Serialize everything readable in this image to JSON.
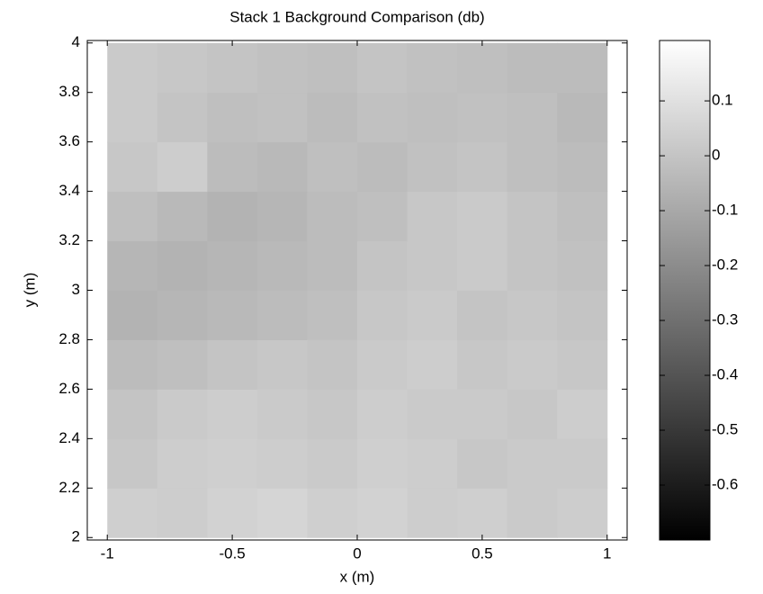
{
  "chart_data": {
    "type": "heatmap",
    "title": "Stack 1 Background Comparison (db)",
    "x_label": "x (m)",
    "y_label": "y (m)",
    "x": [
      -0.9,
      -0.7,
      -0.5,
      -0.3,
      -0.1,
      0.1,
      0.3,
      0.5,
      0.7,
      0.9
    ],
    "y": [
      2.1,
      2.3,
      2.5,
      2.7,
      2.9,
      3.1,
      3.3,
      3.5,
      3.7,
      3.9
    ],
    "values": [
      [
        0.04,
        0.03,
        0.05,
        0.06,
        0.04,
        0.05,
        0.03,
        0.04,
        0.02,
        0.03
      ],
      [
        0.01,
        0.03,
        0.04,
        0.03,
        0.02,
        0.04,
        0.03,
        0.01,
        0.02,
        0.02
      ],
      [
        0.0,
        0.02,
        0.03,
        0.02,
        0.01,
        0.03,
        0.02,
        0.02,
        0.01,
        0.03
      ],
      [
        -0.03,
        -0.02,
        0.0,
        0.01,
        0.0,
        0.02,
        0.03,
        0.01,
        0.02,
        0.01
      ],
      [
        -0.06,
        -0.05,
        -0.04,
        -0.03,
        -0.02,
        0.01,
        0.02,
        0.0,
        0.01,
        0.0
      ],
      [
        -0.05,
        -0.06,
        -0.05,
        -0.04,
        -0.03,
        0.0,
        0.01,
        0.02,
        0.0,
        -0.01
      ],
      [
        -0.02,
        -0.04,
        -0.06,
        -0.05,
        -0.03,
        -0.02,
        0.01,
        0.02,
        0.0,
        -0.02
      ],
      [
        0.01,
        0.03,
        -0.03,
        -0.04,
        -0.02,
        -0.03,
        -0.01,
        0.0,
        -0.02,
        -0.03
      ],
      [
        0.02,
        0.0,
        -0.02,
        -0.01,
        -0.03,
        -0.01,
        -0.02,
        -0.01,
        -0.02,
        -0.04
      ],
      [
        0.02,
        0.01,
        0.0,
        -0.01,
        -0.02,
        0.0,
        -0.01,
        -0.02,
        -0.03,
        -0.03
      ]
    ],
    "xlim": [
      -1.08,
      1.08
    ],
    "ylim": [
      1.99,
      4.01
    ],
    "xticks": [
      -1,
      -0.5,
      0,
      0.5,
      1
    ],
    "yticks": [
      2,
      2.2,
      2.4,
      2.6,
      2.8,
      3,
      3.2,
      3.4,
      3.6,
      3.8,
      4
    ],
    "colormap": "gray",
    "clim": [
      -0.7,
      0.21
    ],
    "cticks": [
      0.1,
      0,
      -0.1,
      -0.2,
      -0.3,
      -0.4,
      -0.5,
      -0.6
    ]
  }
}
